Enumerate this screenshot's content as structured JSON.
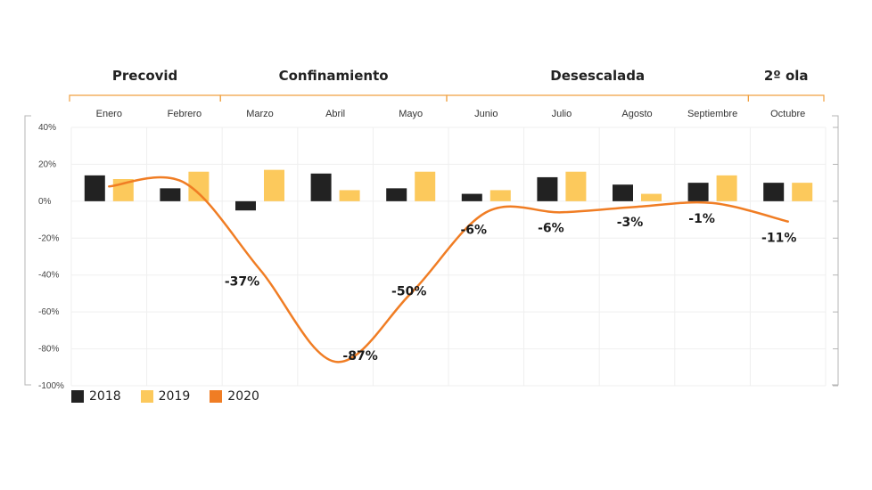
{
  "chart_data": {
    "type": "bar",
    "phases": [
      {
        "label": "Precovid",
        "span": [
          0,
          1
        ]
      },
      {
        "label": "Confinamiento",
        "span": [
          2,
          4
        ]
      },
      {
        "label": "Desescalada",
        "span": [
          5,
          8
        ]
      },
      {
        "label": "2º ola",
        "span": [
          9,
          9
        ]
      }
    ],
    "categories": [
      "Enero",
      "Febrero",
      "Marzo",
      "Abril",
      "Mayo",
      "Junio",
      "Julio",
      "Agosto",
      "Septiembre",
      "Octubre"
    ],
    "yticks": [
      "40%",
      "20%",
      "0%",
      "-20%",
      "-40%",
      "-60%",
      "-80%",
      "-100%"
    ],
    "ylim": [
      -100,
      40
    ],
    "grid": true,
    "legend_position": "bottom-left",
    "series": [
      {
        "name": "2018",
        "type": "bar",
        "color": "#222222",
        "values": [
          14,
          7,
          -5,
          15,
          7,
          4,
          13,
          9,
          10,
          10
        ]
      },
      {
        "name": "2019",
        "type": "bar",
        "color": "#fcc95c",
        "values": [
          12,
          16,
          17,
          6,
          16,
          6,
          16,
          4,
          14,
          10
        ]
      },
      {
        "name": "2020",
        "type": "line",
        "color": "#f07d24",
        "values": [
          8,
          10,
          -37,
          -87,
          -50,
          -6,
          -6,
          -3,
          -1,
          -11
        ]
      }
    ],
    "data_labels": [
      "-37%",
      "-87%",
      "-50%",
      "-6%",
      "-6%",
      "-3%",
      "-1%",
      "-11%"
    ]
  }
}
